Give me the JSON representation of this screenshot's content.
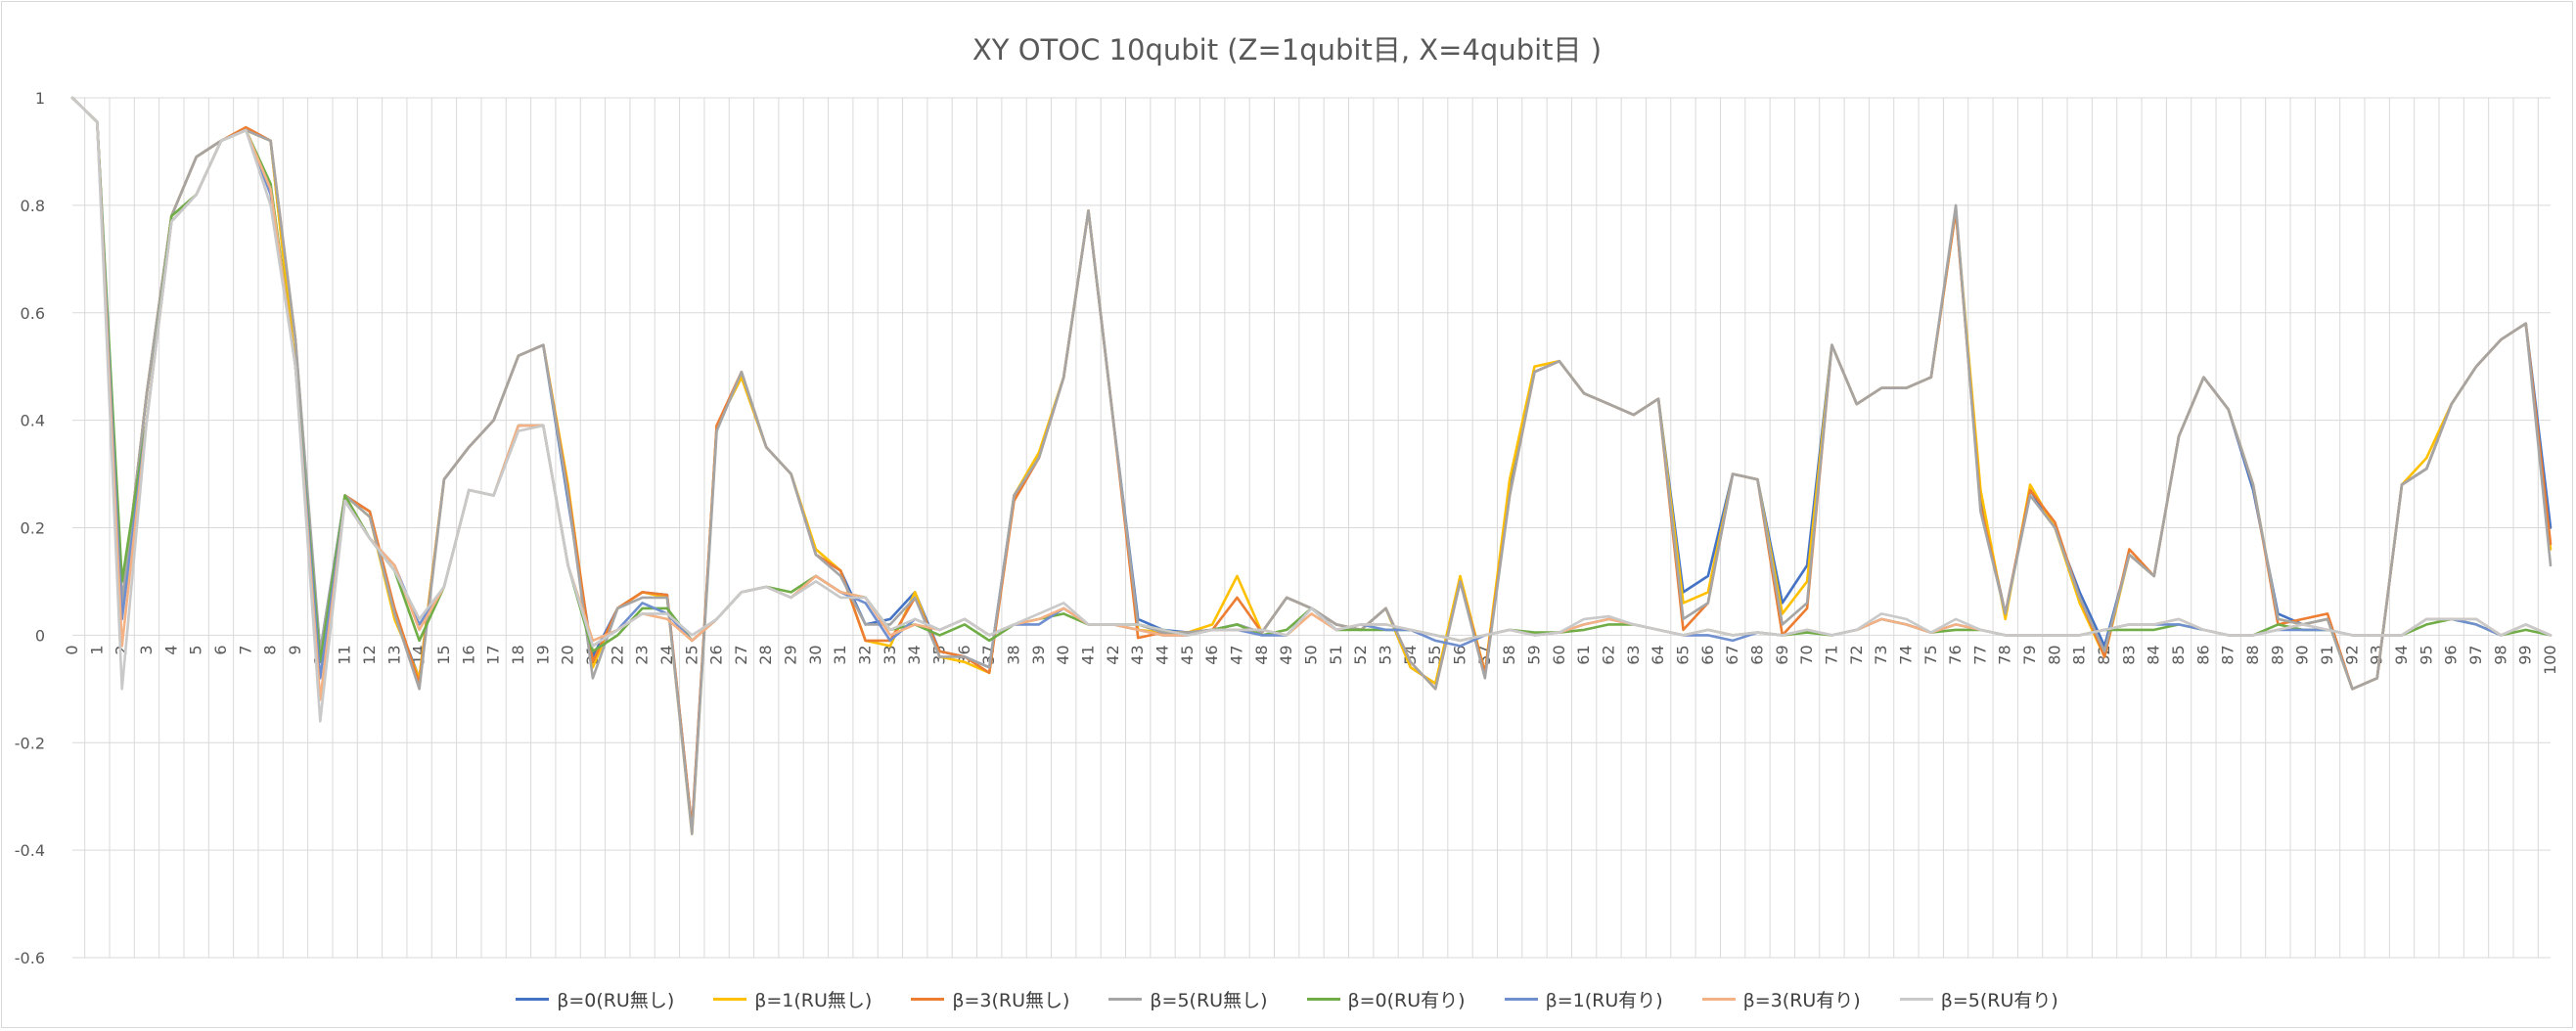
{
  "chart_data": {
    "type": "line",
    "title": "XY OTOC 10qubit (Z=1qubit目, X=4qubit目 )",
    "xlabel": "",
    "ylabel": "",
    "ylim": [
      -0.6,
      1.0
    ],
    "yticks": [
      -0.6,
      -0.4,
      -0.2,
      0,
      0.2,
      0.4,
      0.6,
      0.8,
      1
    ],
    "ytick_labels": [
      "-0.6",
      "-0.4",
      "-0.2",
      "0",
      "0.2",
      "0.4",
      "0.6",
      "0.8",
      "1"
    ],
    "x_range": [
      0,
      100
    ],
    "grid": "vertical and horizontal",
    "legend_position": "bottom",
    "series": [
      {
        "name": "β=0(RU無し)",
        "color": "#4472C4",
        "values": [
          1,
          0.955,
          0.06,
          0.45,
          0.78,
          0.89,
          0.92,
          0.94,
          0.92,
          0.5,
          -0.03,
          0.26,
          0.23,
          0.04,
          -0.08,
          0.29,
          0.35,
          0.4,
          0.52,
          0.54,
          0.25,
          -0.04,
          0.05,
          0.08,
          0.075,
          -0.36,
          0.39,
          0.48,
          0.35,
          0.3,
          0.15,
          0.12,
          0.02,
          0.03,
          0.08,
          -0.03,
          -0.04,
          -0.06,
          0.26,
          0.33,
          0.48,
          0.79,
          0.4,
          0.03,
          0.01,
          0.005,
          0.01,
          0.02,
          0.005,
          0.07,
          0.05,
          0.02,
          0.01,
          0.05,
          -0.06,
          -0.09,
          0.1,
          -0.07,
          0.27,
          0.49,
          0.51,
          0.45,
          0.43,
          0.41,
          0.44,
          0.08,
          0.11,
          0.3,
          0.29,
          0.06,
          0.13,
          0.54,
          0.43,
          0.46,
          0.46,
          0.48,
          0.79,
          0.25,
          0.04,
          0.27,
          0.2,
          0.08,
          -0.02,
          0.15,
          0.11,
          0.37,
          0.48,
          0.42,
          0.27,
          0.04,
          0.02,
          0.03,
          -0.1,
          -0.08,
          0.28,
          0.31,
          0.43,
          0.5,
          0.55,
          0.58,
          0.2
        ]
      },
      {
        "name": "β=1(RU無し)",
        "color": "#FFC000",
        "values": [
          1,
          0.955,
          0.06,
          0.45,
          0.78,
          0.89,
          0.92,
          0.94,
          0.92,
          0.5,
          -0.05,
          0.26,
          0.22,
          0.03,
          -0.08,
          0.29,
          0.35,
          0.4,
          0.52,
          0.54,
          0.28,
          -0.06,
          0.05,
          0.08,
          0.07,
          -0.37,
          0.39,
          0.48,
          0.35,
          0.3,
          0.16,
          0.12,
          -0.01,
          -0.02,
          0.08,
          -0.04,
          -0.05,
          -0.07,
          0.26,
          0.34,
          0.48,
          0.79,
          0.4,
          0.01,
          0.005,
          0.005,
          0.02,
          0.11,
          0.005,
          0.07,
          0.05,
          0.02,
          0.01,
          0.05,
          -0.06,
          -0.09,
          0.11,
          -0.07,
          0.29,
          0.5,
          0.51,
          0.45,
          0.43,
          0.41,
          0.44,
          0.06,
          0.08,
          0.3,
          0.29,
          0.04,
          0.1,
          0.54,
          0.43,
          0.46,
          0.46,
          0.48,
          0.79,
          0.27,
          0.03,
          0.28,
          0.2,
          0.06,
          -0.04,
          0.15,
          0.11,
          0.37,
          0.48,
          0.42,
          0.28,
          0.03,
          0.02,
          0.03,
          -0.1,
          -0.08,
          0.28,
          0.33,
          0.43,
          0.5,
          0.55,
          0.58,
          0.16
        ]
      },
      {
        "name": "β=3(RU無し)",
        "color": "#ED7D31",
        "values": [
          1,
          0.955,
          0.06,
          0.45,
          0.78,
          0.89,
          0.92,
          0.945,
          0.92,
          0.55,
          -0.04,
          0.26,
          0.23,
          0.05,
          -0.09,
          0.29,
          0.35,
          0.4,
          0.52,
          0.54,
          0.27,
          -0.05,
          0.05,
          0.08,
          0.075,
          -0.36,
          0.39,
          0.49,
          0.35,
          0.3,
          0.15,
          0.12,
          -0.01,
          -0.01,
          0.07,
          -0.03,
          -0.04,
          -0.07,
          0.25,
          0.33,
          0.48,
          0.79,
          0.4,
          -0.005,
          0.005,
          0.005,
          0.01,
          0.07,
          0.005,
          0.07,
          0.05,
          0.02,
          0.01,
          0.05,
          -0.05,
          -0.1,
          0.1,
          -0.07,
          0.26,
          0.49,
          0.51,
          0.45,
          0.43,
          0.41,
          0.44,
          0.01,
          0.06,
          0.3,
          0.29,
          0,
          0.05,
          0.54,
          0.43,
          0.46,
          0.46,
          0.48,
          0.79,
          0.24,
          0.04,
          0.27,
          0.21,
          0.07,
          -0.04,
          0.16,
          0.11,
          0.37,
          0.48,
          0.42,
          0.28,
          0.02,
          0.03,
          0.04,
          -0.1,
          -0.08,
          0.28,
          0.31,
          0.43,
          0.5,
          0.55,
          0.58,
          0.17
        ]
      },
      {
        "name": "β=5(RU無し)",
        "color": "#A5A5A5",
        "values": [
          1,
          0.955,
          0.06,
          0.45,
          0.78,
          0.89,
          0.92,
          0.94,
          0.92,
          0.55,
          -0.03,
          0.26,
          0.22,
          0.04,
          -0.1,
          0.29,
          0.35,
          0.4,
          0.52,
          0.54,
          0.26,
          -0.08,
          0.05,
          0.07,
          0.07,
          -0.37,
          0.38,
          0.49,
          0.35,
          0.3,
          0.15,
          0.11,
          0.02,
          0.02,
          0.07,
          -0.04,
          -0.04,
          -0.06,
          0.26,
          0.33,
          0.48,
          0.79,
          0.4,
          0.02,
          0.005,
          0.005,
          0.01,
          0.02,
          0.005,
          0.07,
          0.05,
          0.02,
          0.01,
          0.05,
          -0.05,
          -0.1,
          0.1,
          -0.08,
          0.26,
          0.49,
          0.51,
          0.45,
          0.43,
          0.41,
          0.44,
          0.03,
          0.06,
          0.3,
          0.29,
          0.02,
          0.06,
          0.54,
          0.43,
          0.46,
          0.46,
          0.48,
          0.8,
          0.23,
          0.04,
          0.26,
          0.2,
          0.07,
          -0.03,
          0.15,
          0.11,
          0.37,
          0.48,
          0.42,
          0.28,
          0.03,
          0.02,
          0.03,
          -0.1,
          -0.08,
          0.28,
          0.31,
          0.43,
          0.5,
          0.55,
          0.58,
          0.13
        ]
      },
      {
        "name": "β=0(RU有り)",
        "color": "#70AD47",
        "values": [
          1,
          0.955,
          0.1,
          0.4,
          0.78,
          0.82,
          0.92,
          0.94,
          0.84,
          0.5,
          -0.05,
          0.26,
          0.18,
          0.12,
          -0.01,
          0.09,
          0.27,
          0.26,
          0.39,
          0.39,
          0.13,
          -0.03,
          0,
          0.05,
          0.05,
          -0.01,
          0.03,
          0.08,
          0.09,
          0.08,
          0.11,
          0.08,
          0.07,
          0.01,
          0.02,
          0,
          0.02,
          -0.01,
          0.02,
          0.03,
          0.04,
          0.02,
          0.02,
          0.02,
          0.01,
          0,
          0.01,
          0.02,
          0,
          0.01,
          0.05,
          0.01,
          0.01,
          0.01,
          0.01,
          0,
          -0.01,
          0,
          0.01,
          0.005,
          0.005,
          0.01,
          0.02,
          0.02,
          0.01,
          0,
          0.01,
          0,
          0.005,
          0,
          0.005,
          0,
          0.01,
          0.03,
          0.02,
          0.005,
          0.01,
          0.01,
          0,
          0,
          0,
          0,
          0.01,
          0.01,
          0.01,
          0.02,
          0.01,
          0,
          0,
          0.02,
          0.01,
          0.01,
          0,
          0,
          0,
          0.02,
          0.03,
          0.02,
          0,
          0.01,
          0
        ]
      },
      {
        "name": "β=1(RU有り)",
        "color": "#6F8FCF",
        "values": [
          1,
          0.955,
          0.03,
          0.4,
          0.77,
          0.82,
          0.92,
          0.94,
          0.82,
          0.5,
          -0.08,
          0.25,
          0.18,
          0.13,
          0.02,
          0.09,
          0.27,
          0.26,
          0.39,
          0.39,
          0.13,
          -0.02,
          0.01,
          0.06,
          0.04,
          -0.01,
          0.03,
          0.08,
          0.09,
          0.07,
          0.11,
          0.08,
          0.06,
          -0.01,
          0.03,
          0.01,
          0.03,
          0,
          0.02,
          0.02,
          0.05,
          0.02,
          0.02,
          0.01,
          0,
          0,
          0.01,
          0.01,
          0,
          0,
          0.05,
          0.01,
          0.02,
          0.01,
          0.01,
          -0.01,
          -0.02,
          0,
          0.01,
          0,
          0.005,
          0.02,
          0.03,
          0.02,
          0.01,
          0,
          0,
          -0.01,
          0.005,
          0,
          0.01,
          0,
          0.01,
          0.03,
          0.02,
          0.005,
          0.02,
          0.01,
          0,
          0,
          0,
          0,
          0.01,
          0.02,
          0.02,
          0.02,
          0.01,
          0,
          0,
          0.01,
          0.01,
          0.01,
          0,
          0,
          0,
          0.03,
          0.03,
          0.02,
          0,
          0.02,
          0
        ]
      },
      {
        "name": "β=3(RU有り)",
        "color": "#F4B183",
        "values": [
          1,
          0.955,
          -0.02,
          0.4,
          0.77,
          0.82,
          0.92,
          0.94,
          0.83,
          0.5,
          -0.12,
          0.25,
          0.18,
          0.13,
          0.01,
          0.09,
          0.27,
          0.26,
          0.39,
          0.39,
          0.13,
          -0.01,
          0.01,
          0.04,
          0.03,
          -0.01,
          0.03,
          0.08,
          0.09,
          0.07,
          0.11,
          0.08,
          0.07,
          0,
          0.02,
          0.01,
          0.03,
          0,
          0.02,
          0.03,
          0.05,
          0.02,
          0.02,
          0.01,
          0,
          0,
          0.01,
          0.01,
          0.01,
          0,
          0.04,
          0.01,
          0.02,
          0.02,
          0.01,
          0,
          -0.01,
          0,
          0.01,
          0,
          0.005,
          0.02,
          0.03,
          0.02,
          0.01,
          0,
          0.01,
          0,
          0.005,
          0,
          0.01,
          0,
          0.01,
          0.03,
          0.02,
          0.005,
          0.02,
          0.01,
          0,
          0,
          0,
          0,
          0.01,
          0.02,
          0.02,
          0.03,
          0.01,
          0,
          0,
          0.01,
          0.02,
          0.01,
          0,
          0,
          0,
          0.03,
          0.03,
          0.03,
          0,
          0.02,
          0
        ]
      },
      {
        "name": "β=5(RU有り)",
        "color": "#C9C9C9",
        "values": [
          1,
          0.955,
          -0.1,
          0.4,
          0.77,
          0.82,
          0.92,
          0.94,
          0.8,
          0.5,
          -0.16,
          0.25,
          0.18,
          0.12,
          0.03,
          0.09,
          0.27,
          0.26,
          0.38,
          0.39,
          0.13,
          -0.02,
          0.01,
          0.04,
          0.04,
          0,
          0.03,
          0.08,
          0.09,
          0.07,
          0.1,
          0.07,
          0.07,
          0.01,
          0.03,
          0.01,
          0.03,
          0,
          0.02,
          0.04,
          0.06,
          0.02,
          0.02,
          0.02,
          0.01,
          0,
          0.01,
          0.01,
          0.01,
          0,
          0.05,
          0.01,
          0.02,
          0.02,
          0.01,
          0,
          -0.01,
          0,
          0.01,
          0,
          0.005,
          0.03,
          0.035,
          0.02,
          0.01,
          0,
          0.01,
          0,
          0.005,
          0,
          0.01,
          0,
          0.01,
          0.04,
          0.03,
          0.005,
          0.03,
          0.01,
          0,
          0,
          0,
          0,
          0.01,
          0.02,
          0.02,
          0.03,
          0.01,
          0,
          0,
          0.01,
          0.02,
          0.01,
          0,
          0,
          0,
          0.03,
          0.03,
          0.03,
          0,
          0.02,
          0
        ]
      }
    ]
  }
}
